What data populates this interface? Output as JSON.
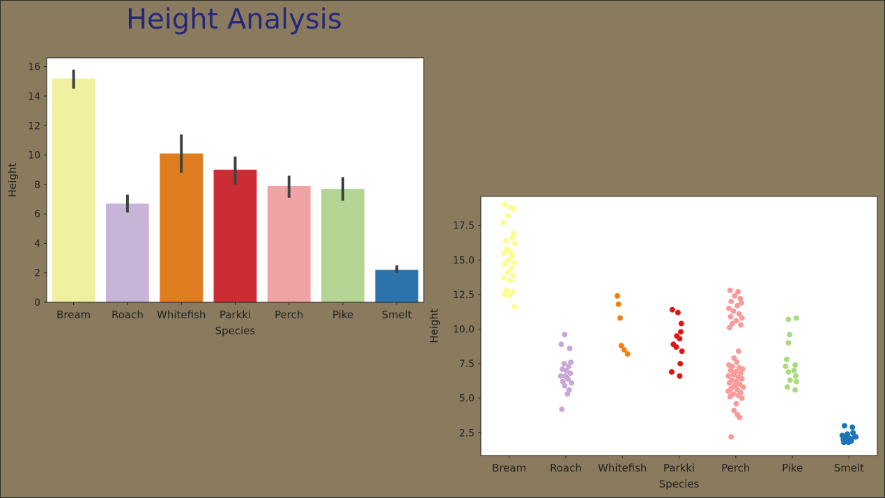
{
  "page": {
    "title": "Height Analysis"
  },
  "colors": {
    "background": "#8b7b5e",
    "title": "#25287a",
    "errorbar": "#424242"
  },
  "chart_data": [
    {
      "type": "bar",
      "title": "",
      "xlabel": "Species",
      "ylabel": "Height",
      "ylim": [
        0,
        16.6
      ],
      "yticks": [
        0,
        2,
        4,
        6,
        8,
        10,
        12,
        14,
        16
      ],
      "categories": [
        "Bream",
        "Roach",
        "Whitefish",
        "Parkki",
        "Perch",
        "Pike",
        "Smelt"
      ],
      "values": [
        15.2,
        6.7,
        10.1,
        9.0,
        7.9,
        7.7,
        2.2
      ],
      "error_low": [
        14.5,
        6.1,
        8.8,
        8.0,
        7.1,
        6.9,
        2.0
      ],
      "error_high": [
        15.8,
        7.3,
        11.4,
        9.9,
        8.6,
        8.5,
        2.5
      ],
      "colors": [
        "#f0f0a0",
        "#c8b4d7",
        "#e07c20",
        "#cc2c34",
        "#efa3a4",
        "#b3d493",
        "#2c74ab"
      ]
    },
    {
      "type": "scatter",
      "title": "",
      "xlabel": "Species",
      "ylabel": "Height",
      "ylim": [
        0.85,
        19.6
      ],
      "yticks": [
        2.5,
        5.0,
        7.5,
        10.0,
        12.5,
        15.0,
        17.5
      ],
      "categories": [
        "Bream",
        "Roach",
        "Whitefish",
        "Parkki",
        "Perch",
        "Pike",
        "Smelt"
      ],
      "colors": [
        "#fdfd8c",
        "#c8a8d9",
        "#f57f0e",
        "#de1616",
        "#f99b9b",
        "#a9dc7e",
        "#1b75b7"
      ],
      "series": [
        {
          "category": "Bream",
          "points": [
            [
              -0.08,
              19.0
            ],
            [
              0.03,
              18.8
            ],
            [
              0.08,
              18.7
            ],
            [
              -0.02,
              18.2
            ],
            [
              -0.1,
              17.7
            ],
            [
              0.08,
              16.9
            ],
            [
              0.05,
              16.6
            ],
            [
              -0.06,
              16.4
            ],
            [
              0.1,
              16.2
            ],
            [
              -0.04,
              15.8
            ],
            [
              0.02,
              15.6
            ],
            [
              -0.09,
              15.5
            ],
            [
              0.06,
              15.3
            ],
            [
              -0.02,
              15.0
            ],
            [
              0.09,
              14.8
            ],
            [
              -0.07,
              14.7
            ],
            [
              0.04,
              14.4
            ],
            [
              -0.03,
              14.1
            ],
            [
              0.07,
              13.9
            ],
            [
              -0.09,
              13.7
            ],
            [
              0.02,
              13.5
            ],
            [
              -0.05,
              12.8
            ],
            [
              0.06,
              12.7
            ],
            [
              -0.08,
              12.5
            ],
            [
              0.01,
              12.4
            ],
            [
              0.1,
              11.6
            ]
          ]
        },
        {
          "category": "Roach",
          "points": [
            [
              -0.02,
              9.6
            ],
            [
              -0.08,
              8.9
            ],
            [
              0.07,
              8.6
            ],
            [
              0.09,
              7.6
            ],
            [
              -0.03,
              7.5
            ],
            [
              0.05,
              7.3
            ],
            [
              -0.06,
              7.1
            ],
            [
              0.01,
              7.0
            ],
            [
              0.08,
              6.8
            ],
            [
              -0.09,
              6.6
            ],
            [
              -0.01,
              6.6
            ],
            [
              0.04,
              6.4
            ],
            [
              -0.05,
              6.2
            ],
            [
              0.1,
              6.1
            ],
            [
              -0.02,
              5.9
            ],
            [
              0.06,
              5.6
            ],
            [
              0.03,
              5.3
            ],
            [
              -0.07,
              4.2
            ]
          ]
        },
        {
          "category": "Whitefish",
          "points": [
            [
              -0.09,
              12.4
            ],
            [
              -0.07,
              11.8
            ],
            [
              -0.04,
              10.8
            ],
            [
              -0.02,
              8.8
            ],
            [
              0.03,
              8.5
            ],
            [
              0.09,
              8.2
            ]
          ]
        },
        {
          "category": "Parkki",
          "points": [
            [
              -0.12,
              11.4
            ],
            [
              -0.02,
              11.2
            ],
            [
              0.04,
              10.4
            ],
            [
              0.03,
              9.8
            ],
            [
              -0.04,
              9.5
            ],
            [
              0.01,
              9.3
            ],
            [
              -0.1,
              8.9
            ],
            [
              -0.05,
              8.7
            ],
            [
              0.05,
              8.4
            ],
            [
              0.02,
              7.5
            ],
            [
              -0.13,
              6.9
            ],
            [
              0.01,
              6.6
            ]
          ]
        },
        {
          "category": "Perch",
          "points": [
            [
              -0.1,
              12.8
            ],
            [
              0.04,
              12.7
            ],
            [
              -0.02,
              12.4
            ],
            [
              0.08,
              12.2
            ],
            [
              -0.08,
              12.0
            ],
            [
              0.1,
              11.9
            ],
            [
              0.03,
              11.7
            ],
            [
              -0.12,
              11.5
            ],
            [
              -0.04,
              11.3
            ],
            [
              0.06,
              11.1
            ],
            [
              -0.09,
              10.9
            ],
            [
              0.11,
              10.8
            ],
            [
              0.01,
              10.6
            ],
            [
              -0.06,
              10.4
            ],
            [
              0.09,
              10.3
            ],
            [
              -0.11,
              10.1
            ],
            [
              0.05,
              8.4
            ],
            [
              -0.03,
              7.9
            ],
            [
              0.02,
              7.6
            ],
            [
              -0.12,
              7.4
            ],
            [
              -0.06,
              7.3
            ],
            [
              0.06,
              7.2
            ],
            [
              0.12,
              7.1
            ],
            [
              -0.09,
              7.0
            ],
            [
              0.0,
              6.9
            ],
            [
              0.09,
              6.8
            ],
            [
              -0.04,
              6.7
            ],
            [
              -0.13,
              6.6
            ],
            [
              0.04,
              6.5
            ],
            [
              0.11,
              6.4
            ],
            [
              -0.07,
              6.3
            ],
            [
              0.01,
              6.2
            ],
            [
              -0.11,
              6.1
            ],
            [
              0.07,
              6.0
            ],
            [
              -0.02,
              5.9
            ],
            [
              0.13,
              5.8
            ],
            [
              -0.08,
              5.7
            ],
            [
              0.03,
              5.6
            ],
            [
              -0.13,
              5.5
            ],
            [
              0.09,
              5.4
            ],
            [
              -0.04,
              5.3
            ],
            [
              0.05,
              5.2
            ],
            [
              -0.1,
              5.1
            ],
            [
              0.11,
              5.0
            ],
            [
              0.01,
              4.6
            ],
            [
              -0.03,
              4.1
            ],
            [
              0.03,
              3.8
            ],
            [
              0.07,
              3.6
            ],
            [
              -0.08,
              2.2
            ]
          ]
        },
        {
          "category": "Pike",
          "points": [
            [
              -0.07,
              10.7
            ],
            [
              0.07,
              10.8
            ],
            [
              -0.05,
              9.6
            ],
            [
              -0.07,
              9.0
            ],
            [
              -0.1,
              7.8
            ],
            [
              0.05,
              7.4
            ],
            [
              -0.12,
              7.3
            ],
            [
              0.03,
              7.0
            ],
            [
              -0.07,
              6.9
            ],
            [
              0.06,
              6.6
            ],
            [
              -0.04,
              6.3
            ],
            [
              0.07,
              6.2
            ],
            [
              -0.09,
              5.8
            ],
            [
              0.05,
              5.6
            ]
          ]
        },
        {
          "category": "Smelt",
          "points": [
            [
              -0.08,
              3.0
            ],
            [
              0.06,
              2.9
            ],
            [
              0.07,
              2.5
            ],
            [
              -0.03,
              2.4
            ],
            [
              -0.12,
              2.3
            ],
            [
              0.1,
              2.2
            ],
            [
              -0.05,
              2.1
            ],
            [
              0.01,
              2.1
            ],
            [
              -0.1,
              2.0
            ],
            [
              0.04,
              1.9
            ],
            [
              -0.07,
              1.9
            ],
            [
              -0.01,
              1.8
            ],
            [
              -0.09,
              1.8
            ],
            [
              0.12,
              2.2
            ]
          ]
        }
      ]
    }
  ]
}
